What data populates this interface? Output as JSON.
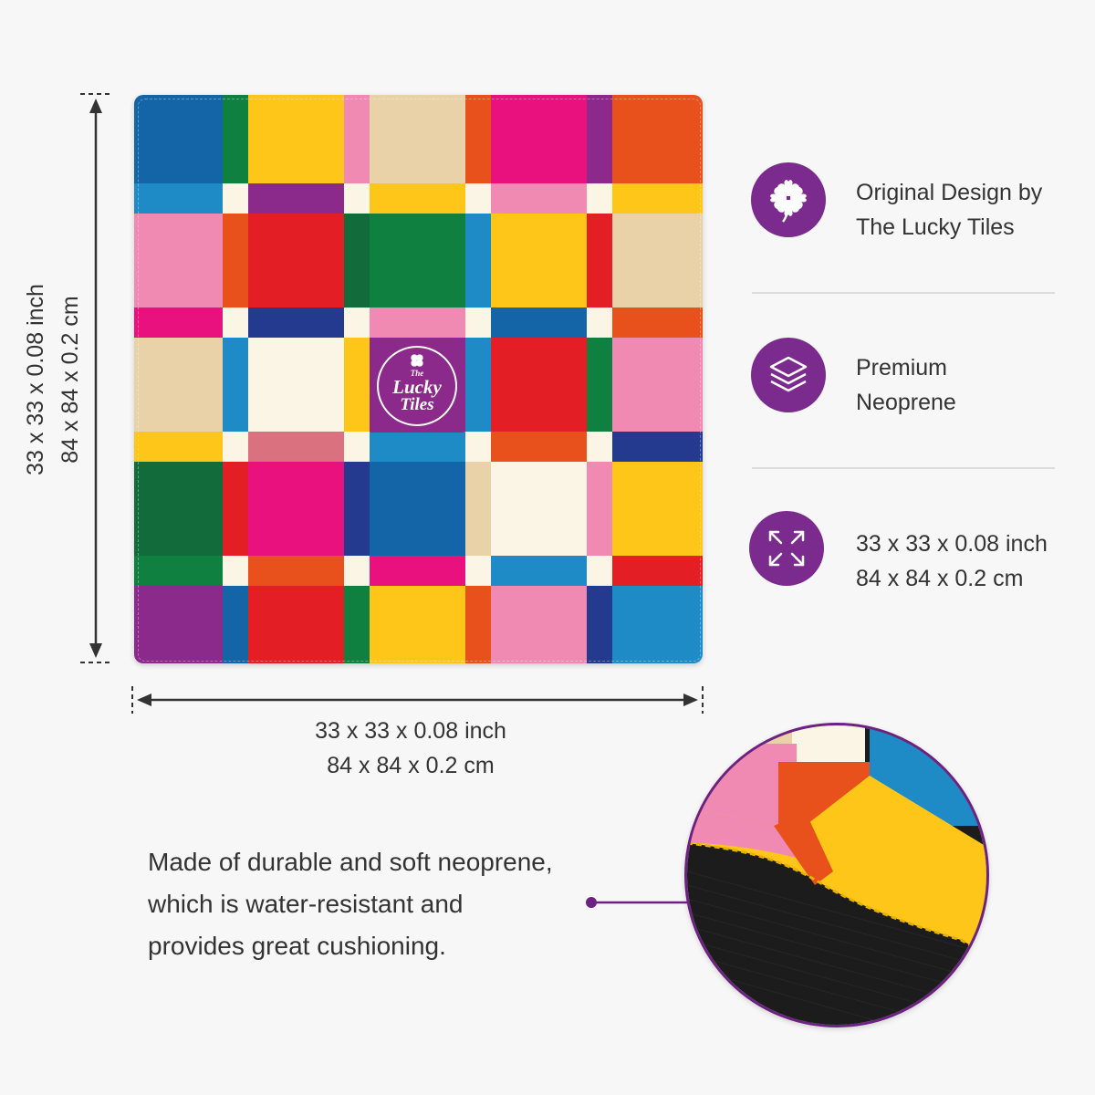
{
  "logo": {
    "line1": "The",
    "line2": "Lucky",
    "line3": "Tiles"
  },
  "dimension_height": {
    "line1": "33 x 33 x 0.08 inch",
    "line2": "84 x 84 x 0.2 cm"
  },
  "dimension_width": {
    "line1": "33 x 33 x 0.08 inch",
    "line2": "84 x 84 x 0.2 cm"
  },
  "features": [
    {
      "icon": "clover-icon",
      "line1": "Original Design by",
      "line2": "The Lucky Tiles"
    },
    {
      "icon": "layers-icon",
      "line1": "Premium",
      "line2": "Neoprene"
    },
    {
      "icon": "expand-arrows-icon",
      "line1": "33 x 33 x 0.08 inch",
      "line2": "84 x 84 x 0.2 cm"
    }
  ],
  "description": {
    "line1": "Made of durable and soft neoprene,",
    "line2": "which is water-resistant and",
    "line3": "provides great cushioning."
  },
  "colors": {
    "accent": "#7b2a8e",
    "zoom_border": "#6d2283",
    "background": "#f7f7f7"
  }
}
